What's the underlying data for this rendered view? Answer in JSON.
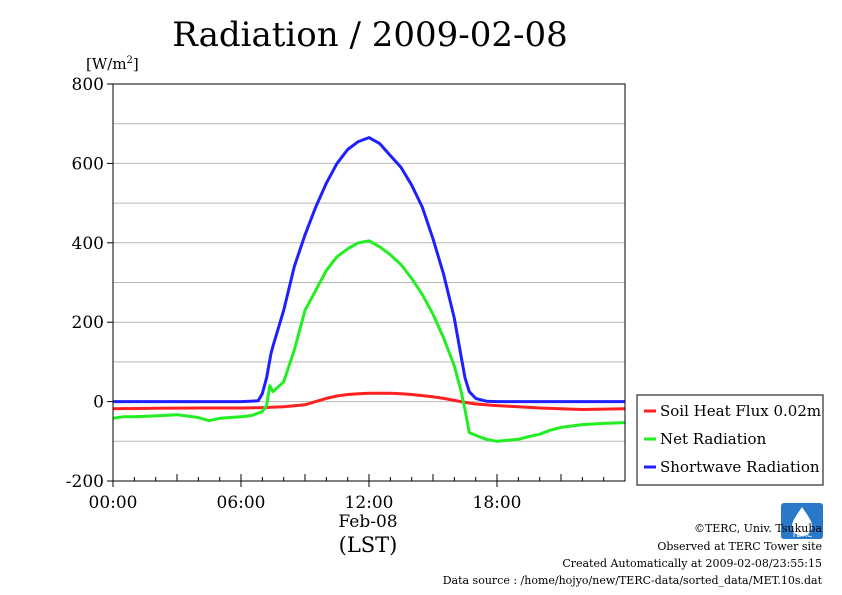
{
  "chart_data": {
    "type": "line",
    "title": "Radiation / 2009-02-08",
    "ylabel": "[W/m2]",
    "ylim": [
      -200,
      800
    ],
    "yticks": [
      -200,
      0,
      200,
      400,
      600,
      800
    ],
    "yticks_text": [
      "-200",
      "0",
      "200",
      "400",
      "600",
      "800"
    ],
    "xlim": [
      0,
      24
    ],
    "xticks": [
      0,
      6,
      12,
      18
    ],
    "xticks_text": [
      "00:00",
      "06:00",
      "12:00",
      "18:00"
    ],
    "x_date_label": "Feb-08",
    "x_unit": "(LST)",
    "grid": true,
    "legend_position": "right",
    "series": [
      {
        "name": "Soil Heat Flux 0.02m",
        "color": "#ff2020",
        "x": [
          0,
          2,
          4,
          6,
          7,
          8,
          9,
          9.5,
          10,
          10.5,
          11,
          11.5,
          12,
          12.5,
          13,
          13.5,
          14,
          14.5,
          15,
          15.5,
          16,
          16.5,
          17,
          18,
          19,
          20,
          21,
          22,
          23,
          24
        ],
        "y": [
          -18,
          -17,
          -16,
          -16,
          -15,
          -13,
          -8,
          0,
          8,
          14,
          18,
          20,
          21,
          21,
          21,
          20,
          18,
          15,
          12,
          8,
          3,
          -2,
          -6,
          -10,
          -13,
          -16,
          -18,
          -20,
          -19,
          -18
        ]
      },
      {
        "name": "Net Radiation",
        "color": "#22ee22",
        "x": [
          0,
          0.5,
          1,
          2,
          3,
          4,
          4.5,
          5,
          6,
          6.5,
          7,
          7.2,
          7.35,
          7.5,
          8,
          8.5,
          9,
          9.5,
          10,
          10.5,
          11,
          11.5,
          12,
          12.5,
          13,
          13.5,
          14,
          14.5,
          15,
          15.5,
          16,
          16.3,
          16.5,
          16.7,
          17,
          17.5,
          18,
          19,
          19.5,
          20,
          20.5,
          21,
          22,
          23,
          24
        ],
        "y": [
          -42,
          -38,
          -38,
          -36,
          -33,
          -40,
          -48,
          -42,
          -38,
          -35,
          -25,
          -10,
          40,
          25,
          50,
          130,
          230,
          280,
          330,
          365,
          385,
          400,
          405,
          390,
          370,
          345,
          310,
          270,
          220,
          160,
          90,
          30,
          -20,
          -78,
          -85,
          -95,
          -100,
          -95,
          -88,
          -82,
          -72,
          -65,
          -58,
          -55,
          -53
        ]
      },
      {
        "name": "Shortwave Radiation",
        "color": "#2020ff",
        "x": [
          0,
          6,
          6.8,
          7,
          7.2,
          7.4,
          7.5,
          8,
          8.5,
          9,
          9.5,
          10,
          10.5,
          11,
          11.5,
          12,
          12.5,
          13,
          13.5,
          14,
          14.5,
          15,
          15.5,
          16,
          16.3,
          16.5,
          16.7,
          17,
          17.5,
          18,
          24
        ],
        "y": [
          0,
          0,
          2,
          20,
          60,
          120,
          140,
          230,
          340,
          420,
          490,
          550,
          600,
          635,
          655,
          665,
          650,
          620,
          590,
          545,
          490,
          410,
          320,
          210,
          120,
          60,
          25,
          8,
          1,
          0,
          0
        ]
      }
    ]
  },
  "footer": {
    "copyright": "©TERC, Univ. Tsukuba",
    "site": "Observed at TERC Tower site",
    "created": "Created Automatically at 2009-02-08/23:55:15",
    "source": "Data source : /home/hojyo/new/TERC-data/sorted_data/MET.10s.dat",
    "logo_text": "TERC"
  }
}
